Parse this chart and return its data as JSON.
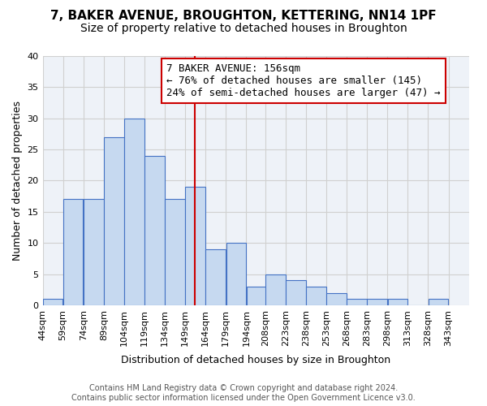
{
  "title": "7, BAKER AVENUE, BROUGHTON, KETTERING, NN14 1PF",
  "subtitle": "Size of property relative to detached houses in Broughton",
  "xlabel": "Distribution of detached houses by size in Broughton",
  "ylabel": "Number of detached properties",
  "bin_labels": [
    "44sqm",
    "59sqm",
    "74sqm",
    "89sqm",
    "104sqm",
    "119sqm",
    "134sqm",
    "149sqm",
    "164sqm",
    "179sqm",
    "194sqm",
    "208sqm",
    "223sqm",
    "238sqm",
    "253sqm",
    "268sqm",
    "283sqm",
    "298sqm",
    "313sqm",
    "328sqm",
    "343sqm"
  ],
  "bar_values": [
    1,
    17,
    17,
    27,
    30,
    24,
    17,
    19,
    9,
    10,
    3,
    5,
    4,
    3,
    2,
    1,
    1,
    1,
    0,
    1
  ],
  "bar_color": "#c6d9f0",
  "bar_edge_color": "#4472c4",
  "property_line_x": 156,
  "bin_edges": [
    44,
    59,
    74,
    89,
    104,
    119,
    134,
    149,
    164,
    179,
    194,
    208,
    223,
    238,
    253,
    268,
    283,
    298,
    313,
    328,
    343
  ],
  "annotation_title": "7 BAKER AVENUE: 156sqm",
  "annotation_line1": "← 76% of detached houses are smaller (145)",
  "annotation_line2": "24% of semi-detached houses are larger (47) →",
  "annotation_box_color": "#ffffff",
  "annotation_border_color": "#cc0000",
  "vline_color": "#cc0000",
  "ylim": [
    0,
    40
  ],
  "yticks": [
    0,
    5,
    10,
    15,
    20,
    25,
    30,
    35,
    40
  ],
  "footer_line1": "Contains HM Land Registry data © Crown copyright and database right 2024.",
  "footer_line2": "Contains public sector information licensed under the Open Government Licence v3.0.",
  "bg_color": "#ffffff",
  "grid_color": "#d0d0d0",
  "title_fontsize": 11,
  "subtitle_fontsize": 10,
  "axis_label_fontsize": 9,
  "tick_fontsize": 8,
  "annotation_fontsize": 9,
  "footer_fontsize": 7
}
